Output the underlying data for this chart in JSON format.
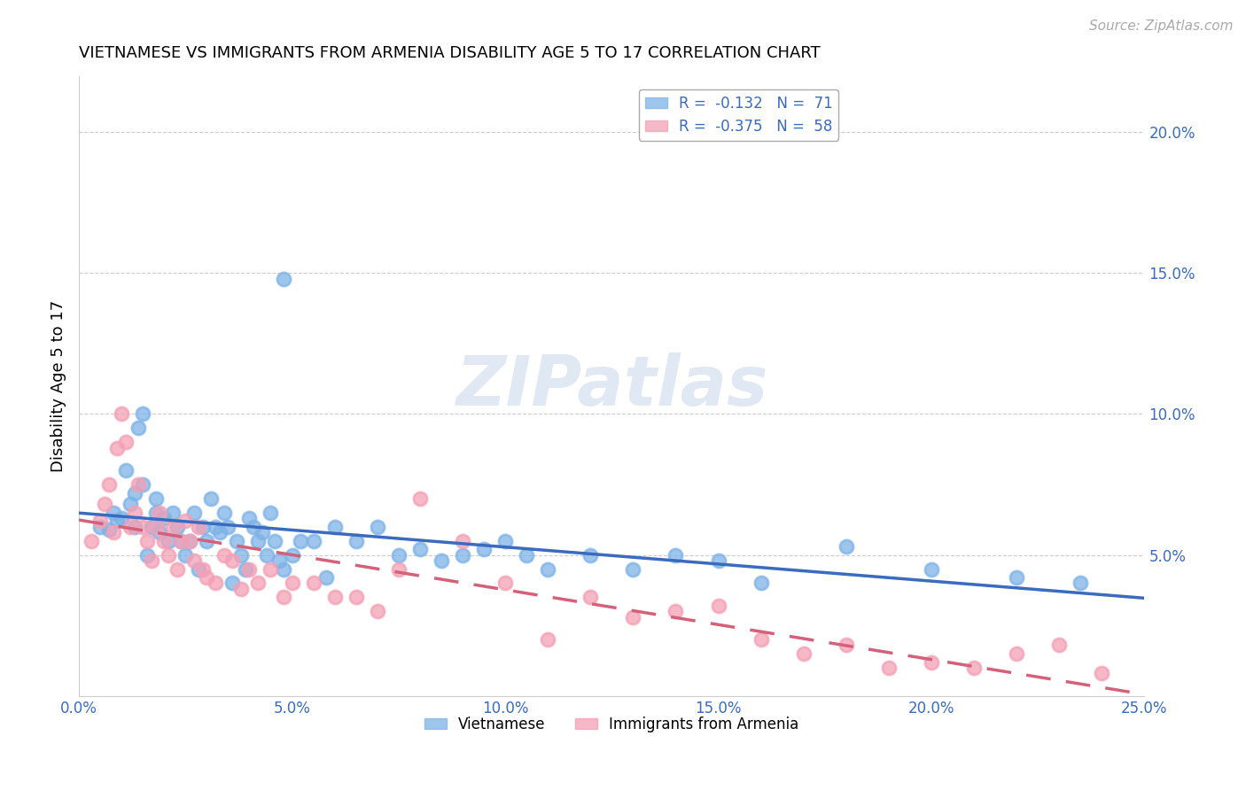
{
  "title": "VIETNAMESE VS IMMIGRANTS FROM ARMENIA DISABILITY AGE 5 TO 17 CORRELATION CHART",
  "source": "Source: ZipAtlas.com",
  "ylabel": "Disability Age 5 to 17",
  "x_min": 0.0,
  "x_max": 0.25,
  "y_min": 0.0,
  "y_max": 0.22,
  "x_ticks": [
    0.0,
    0.05,
    0.1,
    0.15,
    0.2,
    0.25
  ],
  "x_tick_labels": [
    "0.0%",
    "5.0%",
    "10.0%",
    "15.0%",
    "20.0%",
    "25.0%"
  ],
  "y_ticks_right": [
    0.05,
    0.1,
    0.15,
    0.2
  ],
  "y_tick_labels_right": [
    "5.0%",
    "10.0%",
    "15.0%",
    "20.0%"
  ],
  "legend_label1": "R =  -0.132   N =  71",
  "legend_label2": "R =  -0.375   N =  58",
  "series1_color": "#7eb3e8",
  "series2_color": "#f4a0b5",
  "line1_color": "#3a6bbf",
  "line2_color": "#d4607a",
  "watermark": "ZIPatlas",
  "series1_x": [
    0.005,
    0.007,
    0.008,
    0.009,
    0.01,
    0.011,
    0.012,
    0.013,
    0.013,
    0.014,
    0.015,
    0.015,
    0.016,
    0.017,
    0.018,
    0.018,
    0.019,
    0.02,
    0.021,
    0.022,
    0.023,
    0.024,
    0.025,
    0.026,
    0.027,
    0.028,
    0.029,
    0.03,
    0.031,
    0.032,
    0.033,
    0.034,
    0.035,
    0.036,
    0.037,
    0.038,
    0.039,
    0.04,
    0.041,
    0.042,
    0.043,
    0.044,
    0.045,
    0.046,
    0.047,
    0.048,
    0.05,
    0.052,
    0.055,
    0.058,
    0.06,
    0.065,
    0.07,
    0.075,
    0.08,
    0.085,
    0.09,
    0.095,
    0.1,
    0.105,
    0.11,
    0.12,
    0.13,
    0.14,
    0.15,
    0.16,
    0.048,
    0.18,
    0.2,
    0.22,
    0.235
  ],
  "series1_y": [
    0.06,
    0.059,
    0.065,
    0.062,
    0.063,
    0.08,
    0.068,
    0.06,
    0.072,
    0.095,
    0.1,
    0.075,
    0.05,
    0.06,
    0.065,
    0.07,
    0.058,
    0.063,
    0.055,
    0.065,
    0.06,
    0.055,
    0.05,
    0.055,
    0.065,
    0.045,
    0.06,
    0.055,
    0.07,
    0.06,
    0.058,
    0.065,
    0.06,
    0.04,
    0.055,
    0.05,
    0.045,
    0.063,
    0.06,
    0.055,
    0.058,
    0.05,
    0.065,
    0.055,
    0.048,
    0.045,
    0.05,
    0.055,
    0.055,
    0.042,
    0.06,
    0.055,
    0.06,
    0.05,
    0.052,
    0.048,
    0.05,
    0.052,
    0.055,
    0.05,
    0.045,
    0.05,
    0.045,
    0.05,
    0.048,
    0.04,
    0.148,
    0.053,
    0.045,
    0.042,
    0.04
  ],
  "series2_x": [
    0.003,
    0.005,
    0.006,
    0.007,
    0.008,
    0.009,
    0.01,
    0.011,
    0.012,
    0.013,
    0.014,
    0.015,
    0.016,
    0.017,
    0.018,
    0.019,
    0.02,
    0.021,
    0.022,
    0.023,
    0.024,
    0.025,
    0.026,
    0.027,
    0.028,
    0.029,
    0.03,
    0.032,
    0.034,
    0.036,
    0.038,
    0.04,
    0.042,
    0.045,
    0.048,
    0.05,
    0.055,
    0.06,
    0.065,
    0.07,
    0.075,
    0.08,
    0.09,
    0.1,
    0.11,
    0.12,
    0.13,
    0.14,
    0.15,
    0.16,
    0.17,
    0.18,
    0.19,
    0.2,
    0.21,
    0.22,
    0.23,
    0.24
  ],
  "series2_y": [
    0.055,
    0.062,
    0.068,
    0.075,
    0.058,
    0.088,
    0.1,
    0.09,
    0.06,
    0.065,
    0.075,
    0.06,
    0.055,
    0.048,
    0.06,
    0.065,
    0.055,
    0.05,
    0.06,
    0.045,
    0.055,
    0.062,
    0.055,
    0.048,
    0.06,
    0.045,
    0.042,
    0.04,
    0.05,
    0.048,
    0.038,
    0.045,
    0.04,
    0.045,
    0.035,
    0.04,
    0.04,
    0.035,
    0.035,
    0.03,
    0.045,
    0.07,
    0.055,
    0.04,
    0.02,
    0.035,
    0.028,
    0.03,
    0.032,
    0.02,
    0.015,
    0.018,
    0.01,
    0.012,
    0.01,
    0.015,
    0.018,
    0.008
  ]
}
